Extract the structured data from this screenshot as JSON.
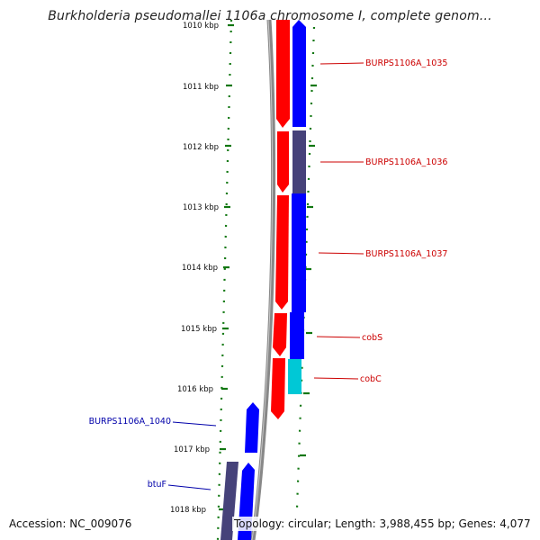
{
  "title": "Burkholderia pseudomallei 1106a chromosome I, complete genom...",
  "footer": {
    "accession": "Accession: NC_009076",
    "summary": "Topology: circular; Length: 3,988,455 bp; Genes: 4,077"
  },
  "colors": {
    "red_feature": "#ff0000",
    "blue_feature": "#0000ff",
    "dark_feature": "#46427a",
    "cyan_feature": "#00c8d6",
    "tick_green": "#117711",
    "backbone": "#888888",
    "label_red": "#cc0000",
    "label_blue": "#0000aa"
  },
  "ticks": [
    {
      "label": "1010 kbp"
    },
    {
      "label": "1011 kbp"
    },
    {
      "label": "1012 kbp"
    },
    {
      "label": "1013 kbp"
    },
    {
      "label": "1014 kbp"
    },
    {
      "label": "1015 kbp"
    },
    {
      "label": "1016 kbp"
    },
    {
      "label": "1017 kbp"
    },
    {
      "label": "1018 kbp"
    }
  ],
  "gene_labels": [
    {
      "name": "BURPS1106A_1035",
      "color": "#cc0000"
    },
    {
      "name": "BURPS1106A_1036",
      "color": "#cc0000"
    },
    {
      "name": "BURPS1106A_1037",
      "color": "#cc0000"
    },
    {
      "name": "cobS",
      "color": "#cc0000"
    },
    {
      "name": "cobC",
      "color": "#cc0000"
    },
    {
      "name": "BURPS1106A_1040",
      "color": "#0000aa"
    },
    {
      "name": "btuF",
      "color": "#0000aa"
    }
  ]
}
